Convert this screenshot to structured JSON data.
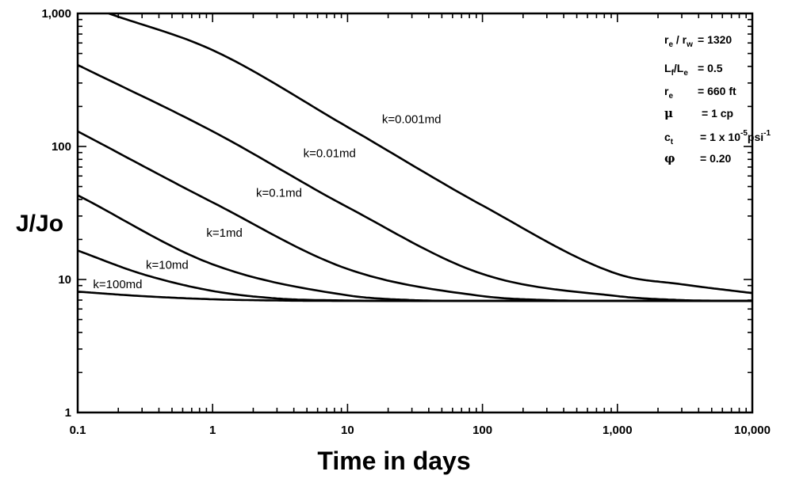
{
  "chart_data": {
    "type": "line",
    "title": "",
    "xlabel": "Time in days",
    "ylabel": "J/Jo",
    "x_scale": "log",
    "y_scale": "log",
    "xlim": [
      0.1,
      10000
    ],
    "ylim": [
      1,
      1000
    ],
    "x_ticks": [
      0.1,
      1,
      10,
      100,
      1000,
      10000
    ],
    "x_tick_labels": [
      "0.1",
      "1",
      "10",
      "100",
      "1,000",
      "10,000"
    ],
    "y_ticks": [
      1,
      10,
      100,
      1000
    ],
    "y_tick_labels": [
      "1",
      "10",
      "100",
      "1,000"
    ],
    "grid": false,
    "series": [
      {
        "name": "k=0.001md",
        "x": [
          0.17,
          1,
          10,
          100,
          1000,
          3000,
          10000
        ],
        "y": [
          1000,
          530,
          140,
          36,
          11,
          9.2,
          7.9
        ]
      },
      {
        "name": "k=0.01md",
        "x": [
          0.1,
          1,
          10,
          100,
          1000,
          3000,
          10000
        ],
        "y": [
          410,
          130,
          35,
          11,
          7.5,
          7.0,
          6.9
        ]
      },
      {
        "name": "k=0.1md",
        "x": [
          0.1,
          1,
          10,
          100,
          300,
          1000,
          10000
        ],
        "y": [
          130,
          38,
          12,
          7.5,
          7.0,
          6.9,
          6.9
        ]
      },
      {
        "name": "k=1md",
        "x": [
          0.1,
          1,
          10,
          30,
          100,
          1000,
          10000
        ],
        "y": [
          43,
          13,
          7.6,
          7.0,
          6.9,
          6.9,
          6.9
        ]
      },
      {
        "name": "k=10md",
        "x": [
          0.1,
          0.3,
          1,
          3,
          10,
          100,
          10000
        ],
        "y": [
          16.5,
          11,
          8.2,
          7.2,
          6.95,
          6.9,
          6.9
        ]
      },
      {
        "name": "k=100md",
        "x": [
          0.1,
          0.3,
          1,
          3,
          10,
          10000
        ],
        "y": [
          8.1,
          7.5,
          7.1,
          6.95,
          6.9,
          6.9
        ]
      }
    ],
    "annotations": [
      {
        "label": "k=0.001md",
        "x": 18,
        "y": 150
      },
      {
        "label": "k=0.01md",
        "x": 4.7,
        "y": 83
      },
      {
        "label": "k=0.1md",
        "x": 2.1,
        "y": 42
      },
      {
        "label": "k=1md",
        "x": 0.9,
        "y": 21
      },
      {
        "label": "k=10md",
        "x": 0.32,
        "y": 12
      },
      {
        "label": "k=100md",
        "x": 0.13,
        "y": 8.6
      }
    ],
    "parameters": [
      {
        "symbol": "r_e / r_w",
        "value": "= 1320"
      },
      {
        "symbol": "L_f / L_e",
        "value": "= 0.5"
      },
      {
        "symbol": "r_e",
        "value": "= 660 ft"
      },
      {
        "symbol": "μ",
        "value": "= 1 cp"
      },
      {
        "symbol": "c_t",
        "value": "= 1 x 10^-5 psi^-1"
      },
      {
        "symbol": "φ",
        "value": "= 0.20"
      }
    ]
  }
}
